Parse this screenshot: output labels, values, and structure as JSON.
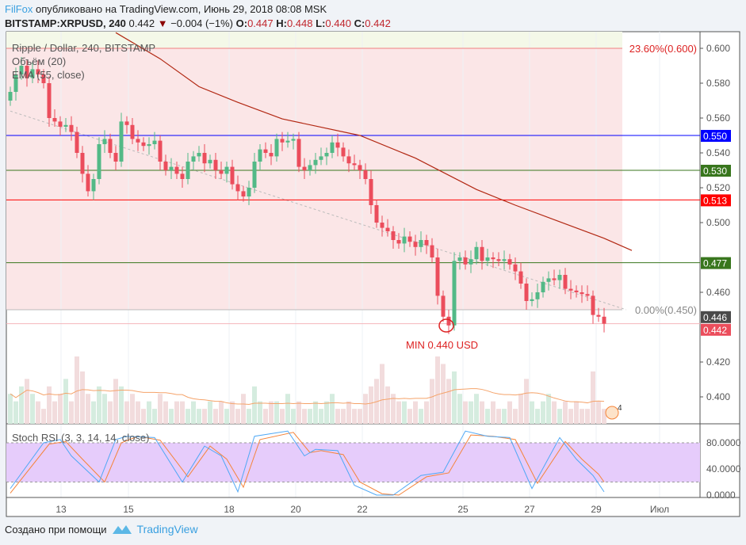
{
  "header": {
    "author": "FilFox",
    "published": "опубликовано на TradingView.com, Июнь 29, 2018 08:08 MSK",
    "symbol": "BITSTAMP:XRPUSD, 240",
    "last": "0.442",
    "change": "−0.004 (−1%)",
    "o_label": "O:",
    "o": "0.447",
    "h_label": "H:",
    "h": "0.448",
    "l_label": "L:",
    "l": "0.440",
    "c_label": "C:",
    "c": "0.442"
  },
  "legend": {
    "title": "Ripple / Dollar, 240, BITSTAMP",
    "volume": "Объём (20)",
    "ema": "EMA (55, close)",
    "stoch": "Stoch RSI (3, 3, 14, 14, close)"
  },
  "footer": {
    "created": "Создано при помощи",
    "brand": "TradingView"
  },
  "annotation": {
    "min": "MIN 0.440 USD",
    "badge": "4"
  },
  "colors": {
    "up": "#53b987",
    "down": "#eb4d5c",
    "ema": "#b22813",
    "stoch_k": "#4fa8f5",
    "stoch_d": "#f5843a",
    "fib_zone": "#fbe6e7",
    "stoch_zone": "#e6ccfb"
  },
  "chart_data": {
    "type": "candlestick",
    "interval": "240",
    "ylim": [
      0.38,
      0.61
    ],
    "y_ticks": [
      "0.600",
      "0.580",
      "0.560",
      "0.540",
      "0.520",
      "0.500",
      "0.460",
      "0.420",
      "0.400"
    ],
    "x_ticks": [
      "13",
      "15",
      "18",
      "20",
      "22",
      "25",
      "27",
      "29",
      "Июл"
    ],
    "first_open": 0.57,
    "closes": [
      0.575,
      0.585,
      0.59,
      0.583,
      0.588,
      0.585,
      0.58,
      0.56,
      0.558,
      0.555,
      0.556,
      0.552,
      0.54,
      0.528,
      0.518,
      0.525,
      0.545,
      0.548,
      0.54,
      0.535,
      0.558,
      0.556,
      0.548,
      0.546,
      0.544,
      0.545,
      0.547,
      0.535,
      0.53,
      0.532,
      0.528,
      0.525,
      0.535,
      0.538,
      0.54,
      0.534,
      0.536,
      0.53,
      0.528,
      0.532,
      0.522,
      0.518,
      0.515,
      0.52,
      0.535,
      0.542,
      0.54,
      0.538,
      0.548,
      0.546,
      0.547,
      0.548,
      0.532,
      0.53,
      0.533,
      0.536,
      0.538,
      0.54,
      0.546,
      0.543,
      0.538,
      0.534,
      0.533,
      0.53,
      0.525,
      0.51,
      0.5,
      0.497,
      0.495,
      0.49,
      0.488,
      0.492,
      0.489,
      0.486,
      0.49,
      0.487,
      0.48,
      0.458,
      0.446,
      0.441,
      0.478,
      0.48,
      0.476,
      0.479,
      0.486,
      0.478,
      0.48,
      0.479,
      0.478,
      0.479,
      0.476,
      0.472,
      0.465,
      0.455,
      0.456,
      0.46,
      0.466,
      0.468,
      0.467,
      0.47,
      0.462,
      0.461,
      0.46,
      0.459,
      0.458,
      0.447,
      0.446,
      0.442
    ],
    "volumes": [
      4,
      3,
      5,
      6,
      4,
      3,
      2,
      5,
      3,
      4,
      6,
      3,
      9,
      7,
      4,
      3,
      5,
      4,
      3,
      6,
      5,
      3,
      4,
      3,
      2,
      3,
      2,
      4,
      3,
      2,
      3,
      3,
      2,
      3,
      2,
      2,
      3,
      2,
      3,
      2,
      3,
      2,
      4,
      2,
      5,
      3,
      2,
      3,
      3,
      2,
      4,
      2,
      3,
      2,
      2,
      3,
      2,
      3,
      4,
      2,
      2,
      3,
      2,
      2,
      4,
      5,
      6,
      8,
      5,
      4,
      3,
      3,
      2,
      3,
      2,
      3,
      6,
      9,
      8,
      6,
      7,
      4,
      3,
      3,
      4,
      3,
      2,
      3,
      2,
      2,
      3,
      2,
      4,
      6,
      3,
      2,
      3,
      4,
      3,
      2,
      3,
      2,
      3,
      2,
      2,
      7,
      3,
      2
    ],
    "ema55": [
      [
        19,
        0.609
      ],
      [
        27,
        0.594
      ],
      [
        34,
        0.578
      ],
      [
        41,
        0.569
      ],
      [
        49,
        0.5595
      ],
      [
        63,
        0.55
      ],
      [
        73,
        0.537
      ],
      [
        84,
        0.519
      ],
      [
        91,
        0.51
      ],
      [
        99,
        0.5005
      ],
      [
        107,
        0.491
      ],
      [
        112,
        0.484
      ]
    ],
    "hlines": [
      {
        "value": 0.55,
        "label": "0.550",
        "color": "#0000ff"
      },
      {
        "value": 0.53,
        "label": "0.530",
        "color": "#38761d"
      },
      {
        "value": 0.513,
        "label": "0.513",
        "color": "#ff0000"
      },
      {
        "value": 0.477,
        "label": "0.477",
        "color": "#38761d"
      },
      {
        "value": 0.446,
        "label": "0.446",
        "color": "#4a4a4a"
      },
      {
        "value": 0.442,
        "label": "0.442",
        "color": "#eb4d5c"
      }
    ],
    "fib": [
      {
        "value": 0.6,
        "label": "23.60%(0.600)"
      },
      {
        "value": 0.45,
        "label": "0.00%(0.450)"
      }
    ],
    "trendline": [
      [
        0,
        0.564
      ],
      [
        111,
        0.45
      ]
    ],
    "stoch_ticks": [
      "80.0000",
      "40.0000",
      "0.0000"
    ],
    "stoch_k": [
      [
        0,
        10
      ],
      [
        6,
        80
      ],
      [
        9,
        85
      ],
      [
        11,
        60
      ],
      [
        16,
        20
      ],
      [
        19,
        85
      ],
      [
        21,
        90
      ],
      [
        26,
        88
      ],
      [
        31,
        20
      ],
      [
        35,
        75
      ],
      [
        38,
        60
      ],
      [
        41,
        5
      ],
      [
        44,
        90
      ],
      [
        50,
        98
      ],
      [
        53,
        60
      ],
      [
        55,
        70
      ],
      [
        59,
        68
      ],
      [
        62,
        15
      ],
      [
        66,
        0
      ],
      [
        69,
        0
      ],
      [
        74,
        30
      ],
      [
        78,
        35
      ],
      [
        82,
        98
      ],
      [
        86,
        90
      ],
      [
        90,
        88
      ],
      [
        94,
        10
      ],
      [
        99,
        88
      ],
      [
        102,
        55
      ],
      [
        105,
        30
      ],
      [
        107,
        5
      ]
    ],
    "stoch_d": [
      [
        0,
        3
      ],
      [
        7,
        78
      ],
      [
        10,
        82
      ],
      [
        13,
        55
      ],
      [
        17,
        20
      ],
      [
        20,
        80
      ],
      [
        23,
        90
      ],
      [
        27,
        84
      ],
      [
        32,
        28
      ],
      [
        36,
        75
      ],
      [
        39,
        55
      ],
      [
        42,
        12
      ],
      [
        45,
        85
      ],
      [
        51,
        96
      ],
      [
        54,
        65
      ],
      [
        56,
        68
      ],
      [
        60,
        62
      ],
      [
        63,
        20
      ],
      [
        67,
        2
      ],
      [
        70,
        0
      ],
      [
        75,
        28
      ],
      [
        79,
        34
      ],
      [
        83,
        92
      ],
      [
        87,
        90
      ],
      [
        91,
        85
      ],
      [
        95,
        18
      ],
      [
        100,
        82
      ],
      [
        103,
        55
      ],
      [
        106,
        32
      ],
      [
        107,
        20
      ]
    ]
  }
}
